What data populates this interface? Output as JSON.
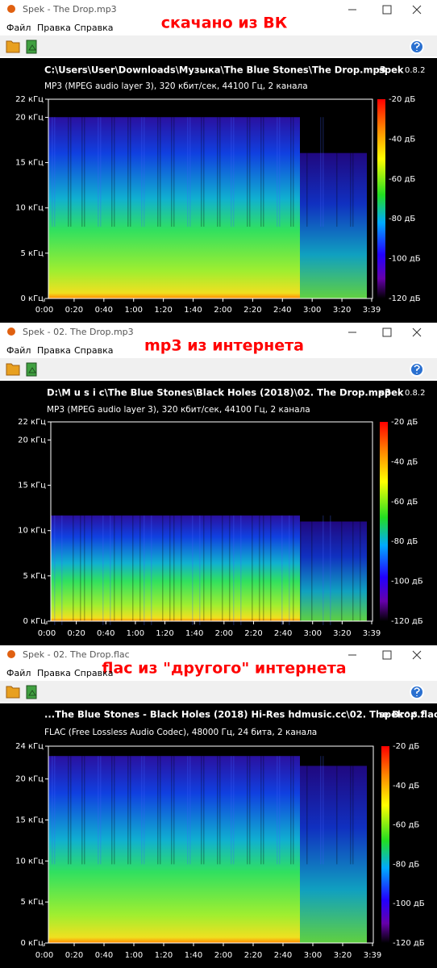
{
  "windows": [
    {
      "title": "Spek - The Drop.mp3",
      "annotation": "скачано из ВК",
      "menu": [
        "Файл",
        "Правка",
        "Справка"
      ],
      "file_path": "C:\\Users\\User\\Downloads\\Музыка\\The Blue Stones\\The Drop.mp3",
      "format_info": "MP3 (MPEG audio layer 3), 320 кбит/сек, 44100 Гц, 2 канала",
      "app_name": "spek",
      "version": "0.8.2",
      "freq_labels": [
        "22 кГц",
        "20 кГц",
        "15 кГц",
        "10 кГц",
        "5 кГц",
        "0 кГц"
      ],
      "time_labels": [
        "0:00",
        "0:20",
        "0:40",
        "1:00",
        "1:20",
        "1:40",
        "2:00",
        "2:20",
        "2:40",
        "3:00",
        "3:20",
        "3:39"
      ],
      "db_labels": [
        "-20 дБ",
        "-40 дБ",
        "-60 дБ",
        "-80 дБ",
        "-100 дБ",
        "-120 дБ"
      ]
    },
    {
      "title": "Spek - 02. The Drop.mp3",
      "annotation": "mp3 из интернета",
      "menu": [
        "Файл",
        "Правка",
        "Справка"
      ],
      "file_path": "D:\\M u s i c\\The Blue Stones\\Black Holes (2018)\\02. The Drop.mp3",
      "format_info": "MP3 (MPEG audio layer 3), 320 кбит/сек, 44100 Гц, 2 канала",
      "app_name": "spek",
      "version": "0.8.2",
      "freq_labels": [
        "22 кГц",
        "20 кГц",
        "15 кГц",
        "10 кГц",
        "5 кГц",
        "0 кГц"
      ],
      "time_labels": [
        "0:00",
        "0:20",
        "0:40",
        "1:00",
        "1:20",
        "1:40",
        "2:00",
        "2:20",
        "2:40",
        "3:00",
        "3:20",
        "3:39"
      ],
      "db_labels": [
        "-20 дБ",
        "-40 дБ",
        "-60 дБ",
        "-80 дБ",
        "-100 дБ",
        "-120 дБ"
      ]
    },
    {
      "title": "Spek - 02. The Drop.flac",
      "annotation": "flac из \"другого\" интернета",
      "menu": [
        "Файл",
        "Правка",
        "Справка"
      ],
      "file_path": "...The Blue Stones - Black Holes (2018) Hi-Res hdmusic.cc\\02. The Drop.flac",
      "format_info": "FLAC (Free Lossless Audio Codec), 48000 Гц, 24 бита, 2 канала",
      "app_name": "spek",
      "version": "0.8.2",
      "freq_labels": [
        "24 кГц",
        "20 кГц",
        "15 кГц",
        "10 кГц",
        "5 кГц",
        "0 кГц"
      ],
      "time_labels": [
        "0:00",
        "0:20",
        "0:40",
        "1:00",
        "1:20",
        "1:40",
        "2:00",
        "2:20",
        "2:40",
        "3:00",
        "3:20",
        "3:39"
      ],
      "db_labels": [
        "-20 дБ",
        "-40 дБ",
        "-60 дБ",
        "-80 дБ",
        "-100 дБ",
        "-120 дБ"
      ]
    }
  ]
}
